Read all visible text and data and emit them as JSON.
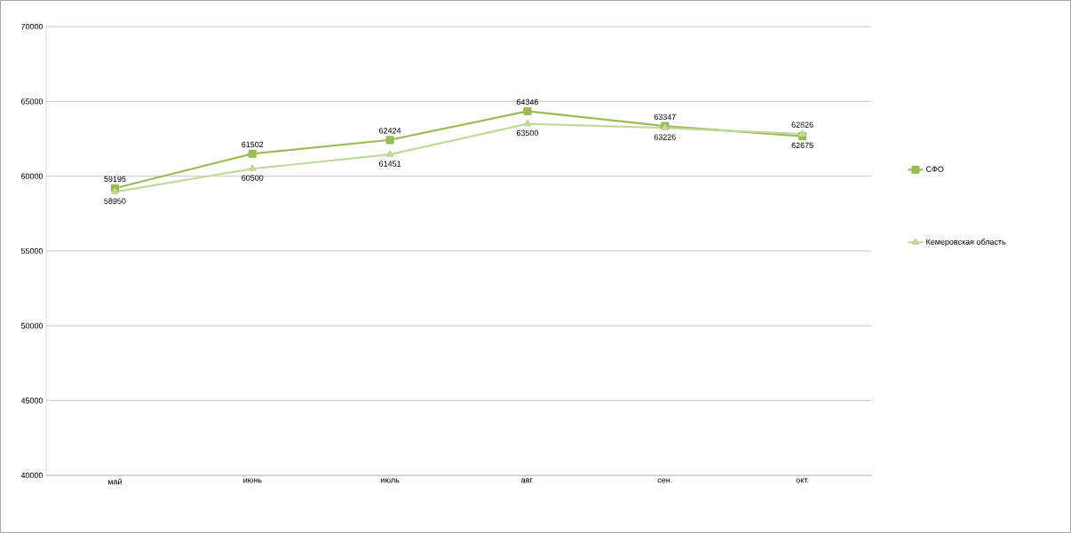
{
  "chart_data": {
    "type": "line",
    "categories": [
      "май",
      "июнь",
      "июль",
      "авг.",
      "сен.",
      "окт."
    ],
    "series": [
      {
        "name": "СФО",
        "color": "#9bbb59",
        "marker": "square",
        "values": [
          59195,
          61502,
          62424,
          64346,
          63347,
          62675
        ]
      },
      {
        "name": "Кемеровская область",
        "color": "#c3d69b",
        "marker": "triangle",
        "values": [
          58950,
          60500,
          61451,
          63500,
          63226,
          62826
        ]
      }
    ],
    "ylim": [
      40000,
      70000
    ],
    "yticks": [
      40000,
      45000,
      50000,
      55000,
      60000,
      65000,
      70000
    ],
    "grid": "y",
    "legend": "right",
    "data_labels": true,
    "line_style": "solid"
  }
}
